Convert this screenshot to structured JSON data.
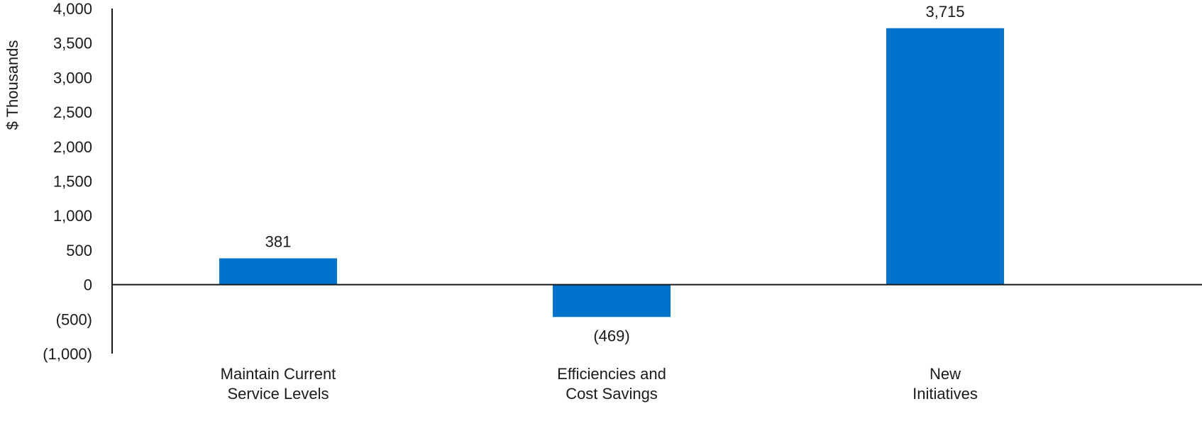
{
  "chart_data": {
    "type": "bar",
    "title": "",
    "xlabel": "",
    "ylabel": "$ Thousands",
    "ylim": [
      -1000,
      4000
    ],
    "yticks": [
      4000,
      3500,
      3000,
      2500,
      2000,
      1500,
      1000,
      500,
      0,
      -500,
      -1000
    ],
    "ytick_labels": [
      "4,000",
      "3,500",
      "3,000",
      "2,500",
      "2,000",
      "1,500",
      "1,000",
      "500",
      "0",
      "(500)",
      "(1,000)"
    ],
    "categories": [
      [
        "Maintain Current",
        "Service Levels"
      ],
      [
        "Efficiencies and",
        "Cost Savings"
      ],
      [
        "New",
        "Initiatives"
      ]
    ],
    "values": [
      381,
      -469,
      3715
    ],
    "data_labels": [
      "381",
      "(469)",
      "3,715"
    ],
    "bar_color": "#0073CC",
    "grid": false,
    "legend": "none"
  }
}
